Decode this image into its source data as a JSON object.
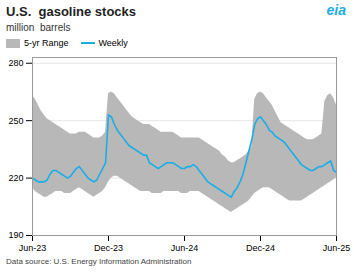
{
  "chart_data": {
    "type": "line",
    "title": "U.S.  gasoline stocks",
    "subtitle": "million  barrels",
    "footer": "Data source: U.S. Energy Information Administration",
    "annotations": [
      {
        "text": "eia",
        "color": "#1aaee5"
      }
    ],
    "categories": [
      "Jun-23",
      null,
      null,
      null,
      null,
      null,
      null,
      null,
      null,
      null,
      null,
      null,
      null,
      null,
      null,
      null,
      null,
      null,
      null,
      null,
      null,
      null,
      null,
      null,
      null,
      null,
      "Dec-23",
      null,
      null,
      null,
      null,
      null,
      null,
      null,
      null,
      null,
      null,
      null,
      null,
      null,
      null,
      null,
      null,
      null,
      null,
      null,
      null,
      null,
      null,
      null,
      null,
      null,
      "Jun-24",
      null,
      null,
      null,
      null,
      null,
      null,
      null,
      null,
      null,
      null,
      null,
      null,
      null,
      null,
      null,
      null,
      null,
      null,
      null,
      null,
      null,
      null,
      null,
      null,
      null,
      "Dec-24",
      null,
      null,
      null,
      null,
      null,
      null,
      null,
      null,
      null,
      null,
      null,
      null,
      null,
      null,
      null,
      null,
      null,
      null,
      null,
      null,
      null,
      null,
      null,
      null,
      null,
      "Jun-25"
    ],
    "series": [
      {
        "name": "5-yr Range",
        "type": "area",
        "color": "#b8b8b8",
        "low": [
          215,
          213,
          212,
          211,
          210,
          210,
          211,
          212,
          213,
          213,
          213,
          212,
          212,
          212,
          213,
          214,
          215,
          214,
          213,
          212,
          211,
          210,
          211,
          212,
          213,
          215,
          218,
          220,
          221,
          221,
          220,
          219,
          218,
          217,
          216,
          215,
          214,
          213,
          213,
          213,
          213,
          212,
          212,
          212,
          212,
          213,
          213,
          213,
          213,
          213,
          213,
          212,
          212,
          212,
          213,
          213,
          213,
          213,
          212,
          211,
          210,
          209,
          208,
          207,
          206,
          205,
          204,
          203,
          202,
          203,
          204,
          205,
          206,
          207,
          208,
          210,
          212,
          213,
          214,
          215,
          215,
          215,
          214,
          213,
          212,
          211,
          210,
          209,
          208,
          208,
          208,
          208,
          208,
          209,
          210,
          211,
          212,
          213,
          214,
          215,
          216,
          217,
          218,
          219,
          220
        ],
        "high": [
          263,
          261,
          258,
          255,
          253,
          251,
          250,
          249,
          248,
          247,
          246,
          245,
          244,
          243,
          243,
          243,
          244,
          244,
          244,
          243,
          242,
          241,
          241,
          241,
          242,
          244,
          264,
          265,
          264,
          262,
          260,
          258,
          256,
          254,
          252,
          251,
          250,
          249,
          248,
          248,
          248,
          247,
          246,
          245,
          244,
          244,
          244,
          244,
          244,
          243,
          242,
          241,
          241,
          241,
          241,
          241,
          241,
          241,
          240,
          239,
          238,
          237,
          236,
          235,
          234,
          232,
          231,
          229,
          228,
          228,
          229,
          230,
          231,
          232,
          234,
          236,
          261,
          264,
          265,
          264,
          262,
          260,
          258,
          255,
          252,
          249,
          248,
          247,
          246,
          245,
          244,
          243,
          242,
          241,
          240,
          240,
          240,
          241,
          242,
          243,
          260,
          263,
          264,
          262,
          258
        ]
      },
      {
        "name": "Weekly",
        "type": "line",
        "color": "#1aaee5",
        "values": [
          220,
          219,
          218,
          218,
          218,
          219,
          222,
          224,
          224,
          223,
          222,
          221,
          220,
          221,
          223,
          225,
          226,
          224,
          222,
          220,
          219,
          218,
          219,
          222,
          225,
          228,
          253,
          252,
          248,
          245,
          243,
          241,
          239,
          237,
          236,
          235,
          234,
          233,
          232,
          232,
          228,
          227,
          226,
          225,
          226,
          227,
          228,
          228,
          228,
          227,
          226,
          225,
          225,
          226,
          226,
          227,
          226,
          224,
          222,
          220,
          218,
          217,
          216,
          215,
          214,
          213,
          212,
          211,
          210,
          213,
          215,
          218,
          222,
          228,
          234,
          240,
          248,
          251,
          252,
          250,
          248,
          245,
          244,
          242,
          241,
          240,
          239,
          237,
          235,
          233,
          231,
          229,
          227,
          226,
          225,
          224,
          224,
          225,
          226,
          226,
          227,
          228,
          229,
          224,
          223
        ]
      }
    ],
    "ylim": [
      190,
      283
    ],
    "yticks": [
      190,
      220,
      250,
      280
    ],
    "grid": true,
    "legend": "top-left"
  }
}
